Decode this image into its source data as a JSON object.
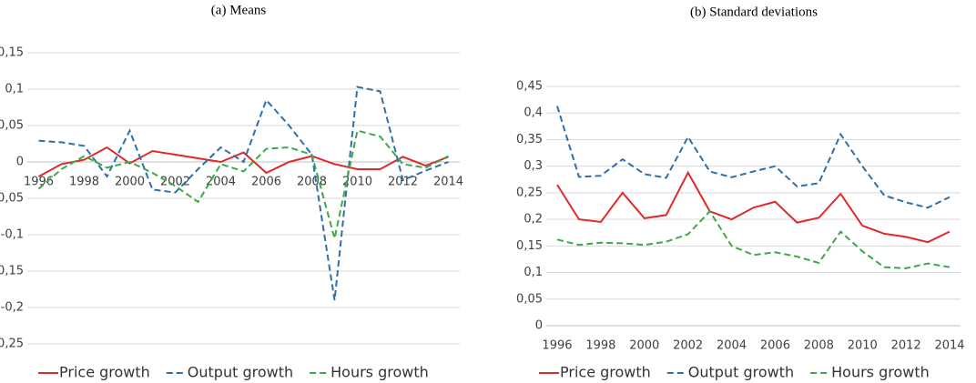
{
  "chart_data": [
    {
      "type": "line",
      "title": "(a)  Means",
      "x": [
        1996,
        1997,
        1998,
        1999,
        2000,
        2001,
        2002,
        2003,
        2004,
        2005,
        2006,
        2007,
        2008,
        2009,
        2010,
        2011,
        2012,
        2013,
        2014
      ],
      "xlim": [
        1995.5,
        2014.5
      ],
      "xticks": [
        1996,
        1998,
        2000,
        2002,
        2004,
        2006,
        2008,
        2010,
        2012,
        2014
      ],
      "ylim": [
        -0.25,
        0.15
      ],
      "yticks": [
        {
          "value": -0.25,
          "label": "-0,25"
        },
        {
          "value": -0.2,
          "label": "-0,2"
        },
        {
          "value": -0.15,
          "label": "-0,15"
        },
        {
          "value": -0.1,
          "label": "-0,1"
        },
        {
          "value": -0.05,
          "label": "-0,05"
        },
        0,
        {
          "value": 0.05,
          "label": "0,05"
        },
        {
          "value": 0.1,
          "label": "0,1"
        },
        {
          "value": 0.15,
          "label": "0,15"
        }
      ],
      "grid": true,
      "legend": "bottom",
      "series": [
        {
          "name": "Price growth",
          "color": "#e0292b",
          "line_style": "solid",
          "values": [
            -0.02,
            -0.003,
            0.003,
            0.02,
            -0.002,
            0.015,
            0.01,
            0.005,
            0.0,
            0.013,
            -0.015,
            0.0,
            0.008,
            -0.003,
            -0.01,
            -0.01,
            0.007,
            -0.005,
            0.007
          ]
        },
        {
          "name": "Output growth",
          "color": "#2e6fac",
          "line_style": "dashed",
          "values": [
            0.029,
            0.027,
            0.022,
            -0.02,
            0.043,
            -0.038,
            -0.042,
            -0.01,
            0.02,
            0.0,
            0.085,
            0.05,
            0.01,
            -0.19,
            0.103,
            0.097,
            -0.025,
            -0.012,
            0.0
          ]
        },
        {
          "name": "Hours growth",
          "color": "#3aaa48",
          "line_style": "dashed",
          "values": [
            -0.037,
            -0.01,
            0.008,
            -0.008,
            0.0,
            -0.015,
            -0.033,
            -0.055,
            -0.003,
            -0.013,
            0.018,
            0.02,
            0.01,
            -0.105,
            0.043,
            0.035,
            -0.003,
            -0.008,
            0.008
          ]
        }
      ]
    },
    {
      "type": "line",
      "title": "(b)  Standard deviations",
      "x": [
        1996,
        1997,
        1998,
        1999,
        2000,
        2001,
        2002,
        2003,
        2004,
        2005,
        2006,
        2007,
        2008,
        2009,
        2010,
        2011,
        2012,
        2013,
        2014
      ],
      "xlim": [
        1995.5,
        2014.5
      ],
      "xticks": [
        1996,
        1998,
        2000,
        2002,
        2004,
        2006,
        2008,
        2010,
        2012,
        2014
      ],
      "ylim": [
        0,
        0.45
      ],
      "yticks": [
        0,
        {
          "value": 0.05,
          "label": "0,05"
        },
        {
          "value": 0.1,
          "label": "0,1"
        },
        {
          "value": 0.15,
          "label": "0,15"
        },
        {
          "value": 0.2,
          "label": "0,2"
        },
        {
          "value": 0.25,
          "label": "0,25"
        },
        {
          "value": 0.3,
          "label": "0,3"
        },
        {
          "value": 0.35,
          "label": "0,35"
        },
        {
          "value": 0.4,
          "label": "0,4"
        },
        {
          "value": 0.45,
          "label": "0,45"
        }
      ],
      "grid": true,
      "legend": "bottom",
      "series": [
        {
          "name": "Price growth",
          "color": "#e0292b",
          "line_style": "solid",
          "values": [
            0.265,
            0.2,
            0.195,
            0.25,
            0.202,
            0.208,
            0.288,
            0.215,
            0.2,
            0.222,
            0.233,
            0.194,
            0.203,
            0.248,
            0.188,
            0.173,
            0.167,
            0.157,
            0.177
          ]
        },
        {
          "name": "Output growth",
          "color": "#2e6fac",
          "line_style": "dashed",
          "values": [
            0.413,
            0.28,
            0.282,
            0.313,
            0.285,
            0.278,
            0.355,
            0.29,
            0.279,
            0.29,
            0.3,
            0.262,
            0.268,
            0.36,
            0.3,
            0.245,
            0.232,
            0.222,
            0.242
          ]
        },
        {
          "name": "Hours growth",
          "color": "#3aaa48",
          "line_style": "dashed",
          "values": [
            0.162,
            0.152,
            0.156,
            0.155,
            0.152,
            0.158,
            0.172,
            0.215,
            0.15,
            0.133,
            0.138,
            0.13,
            0.118,
            0.177,
            0.14,
            0.11,
            0.108,
            0.117,
            0.11
          ]
        }
      ]
    }
  ]
}
